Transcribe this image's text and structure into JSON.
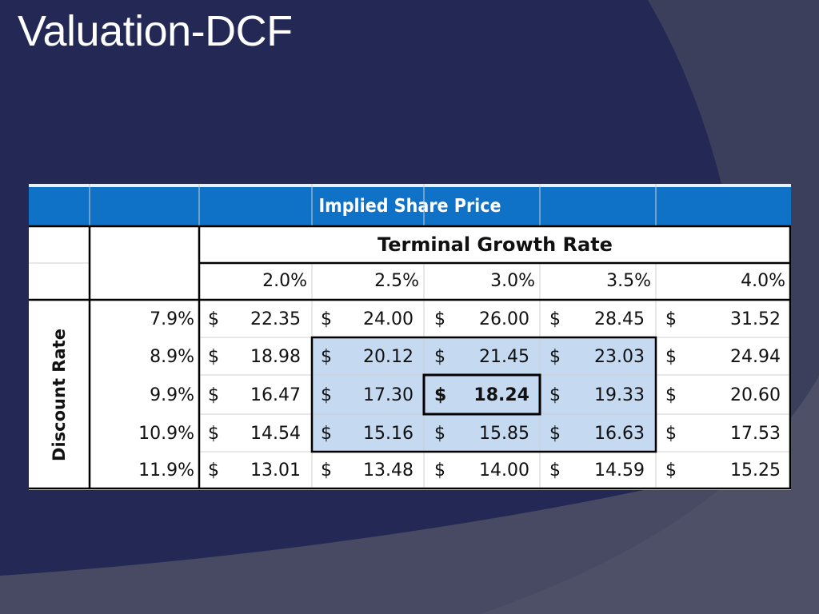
{
  "slide": {
    "title": "Valuation-DCF"
  },
  "table": {
    "banner": "Implied Share Price",
    "column_header": "Terminal Growth Rate",
    "row_header": "Discount Rate",
    "growth_rates": [
      "2.0%",
      "2.5%",
      "3.0%",
      "3.5%",
      "4.0%"
    ],
    "currency_symbol": "$",
    "rows": [
      {
        "rate": "7.9%",
        "prices": [
          "22.35",
          "24.00",
          "26.00",
          "28.45",
          "31.52"
        ]
      },
      {
        "rate": "8.9%",
        "prices": [
          "18.98",
          "20.12",
          "21.45",
          "23.03",
          "24.94"
        ]
      },
      {
        "rate": "9.9%",
        "prices": [
          "16.47",
          "17.30",
          "18.24",
          "19.33",
          "20.60"
        ]
      },
      {
        "rate": "10.9%",
        "prices": [
          "14.54",
          "15.16",
          "15.85",
          "16.63",
          "17.53"
        ]
      },
      {
        "rate": "11.9%",
        "prices": [
          "13.01",
          "13.48",
          "14.00",
          "14.59",
          "15.25"
        ]
      }
    ],
    "highlight_color": "#c5d9f1",
    "banner_color": "#0f72c6"
  }
}
